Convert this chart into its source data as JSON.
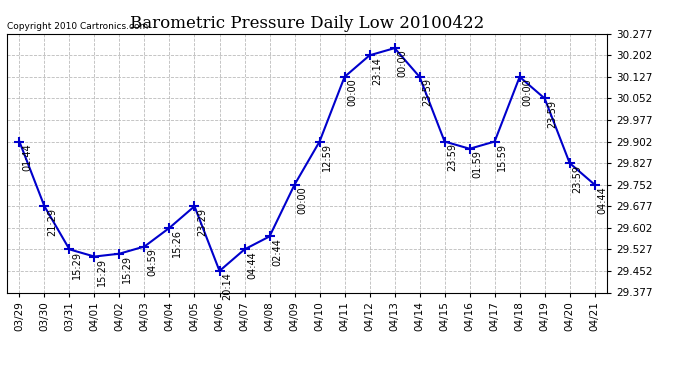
{
  "title": "Barometric Pressure Daily Low 20100422",
  "copyright": "Copyright 2010 Cartronics.com",
  "x_labels": [
    "03/29",
    "03/30",
    "03/31",
    "04/01",
    "04/02",
    "04/03",
    "04/04",
    "04/05",
    "04/06",
    "04/07",
    "04/08",
    "04/09",
    "04/10",
    "04/11",
    "04/12",
    "04/13",
    "04/14",
    "04/15",
    "04/16",
    "04/17",
    "04/18",
    "04/19",
    "04/20",
    "04/21"
  ],
  "data_points": [
    {
      "date": "03/29",
      "time": "01:44",
      "value": 29.902
    },
    {
      "date": "03/30",
      "time": "21:29",
      "value": 29.677
    },
    {
      "date": "03/31",
      "time": "15:29",
      "value": 29.527
    },
    {
      "date": "04/01",
      "time": "15:29",
      "value": 29.502
    },
    {
      "date": "04/02",
      "time": "15:29",
      "value": 29.512
    },
    {
      "date": "04/03",
      "time": "04:59",
      "value": 29.537
    },
    {
      "date": "04/04",
      "time": "15:26",
      "value": 29.602
    },
    {
      "date": "04/05",
      "time": "23:29",
      "value": 29.677
    },
    {
      "date": "04/06",
      "time": "20:14",
      "value": 29.452
    },
    {
      "date": "04/07",
      "time": "04:44",
      "value": 29.527
    },
    {
      "date": "04/08",
      "time": "02:44",
      "value": 29.572
    },
    {
      "date": "04/09",
      "time": "00:00",
      "value": 29.752
    },
    {
      "date": "04/10",
      "time": "12:59",
      "value": 29.902
    },
    {
      "date": "04/11",
      "time": "00:00",
      "value": 30.127
    },
    {
      "date": "04/12",
      "time": "23:14",
      "value": 30.202
    },
    {
      "date": "04/13",
      "time": "00:00",
      "value": 30.227
    },
    {
      "date": "04/14",
      "time": "23:59",
      "value": 30.127
    },
    {
      "date": "04/15",
      "time": "23:59",
      "value": 29.902
    },
    {
      "date": "04/16",
      "time": "01:59",
      "value": 29.877
    },
    {
      "date": "04/17",
      "time": "15:59",
      "value": 29.902
    },
    {
      "date": "04/18",
      "time": "00:00",
      "value": 30.127
    },
    {
      "date": "04/19",
      "time": "23:59",
      "value": 30.052
    },
    {
      "date": "04/20",
      "time": "23:59",
      "value": 29.827
    },
    {
      "date": "04/21",
      "time": "04:44",
      "value": 29.752
    }
  ],
  "y_ticks": [
    29.377,
    29.452,
    29.527,
    29.602,
    29.677,
    29.752,
    29.827,
    29.902,
    29.977,
    30.052,
    30.127,
    30.202,
    30.277
  ],
  "ylim": [
    29.377,
    30.277
  ],
  "line_color": "#0000CC",
  "marker_color": "#0000CC",
  "bg_color": "#FFFFFF",
  "grid_color": "#BBBBBB",
  "title_fontsize": 12,
  "tick_fontsize": 7.5,
  "annotation_fontsize": 7.0
}
